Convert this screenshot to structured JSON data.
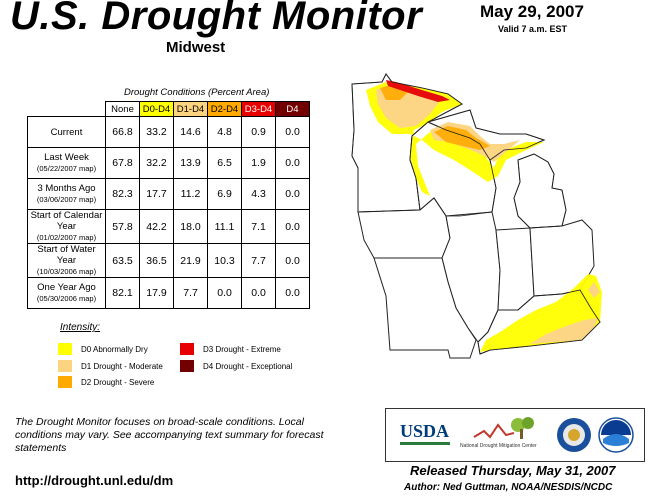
{
  "title": "U.S. Drought Monitor",
  "region": "Midwest",
  "date": "May 29, 2007",
  "valid": "Valid 7 a.m. EST",
  "table": {
    "caption": "Drought Conditions (Percent Area)",
    "headers": [
      "None",
      "D0-D4",
      "D1-D4",
      "D2-D4",
      "D3-D4",
      "D4"
    ],
    "rows": [
      {
        "label": "Current",
        "sub": "",
        "values": [
          "66.8",
          "33.2",
          "14.6",
          "4.8",
          "0.9",
          "0.0"
        ]
      },
      {
        "label": "Last Week",
        "sub": "(05/22/2007 map)",
        "values": [
          "67.8",
          "32.2",
          "13.9",
          "6.5",
          "1.9",
          "0.0"
        ]
      },
      {
        "label": "3 Months Ago",
        "sub": "(03/06/2007 map)",
        "values": [
          "82.3",
          "17.7",
          "11.2",
          "6.9",
          "4.3",
          "0.0"
        ]
      },
      {
        "label": "Start of Calendar Year",
        "sub": "(01/02/2007 map)",
        "values": [
          "57.8",
          "42.2",
          "18.0",
          "11.1",
          "7.1",
          "0.0"
        ]
      },
      {
        "label": "Start of Water Year",
        "sub": "(10/03/2006 map)",
        "values": [
          "63.5",
          "36.5",
          "21.9",
          "10.3",
          "7.7",
          "0.0"
        ]
      },
      {
        "label": "One Year Ago",
        "sub": "(05/30/2006 map)",
        "values": [
          "82.1",
          "17.9",
          "7.7",
          "0.0",
          "0.0",
          "0.0"
        ]
      }
    ]
  },
  "intensity": {
    "title": "Intensity:",
    "items": [
      {
        "label": "D0 Abnormally Dry",
        "color": "#ffff00"
      },
      {
        "label": "D1 Drought - Moderate",
        "color": "#fcd37f"
      },
      {
        "label": "D2 Drought - Severe",
        "color": "#ffaa00"
      },
      {
        "label": "D3 Drought - Extreme",
        "color": "#e60000"
      },
      {
        "label": "D4 Drought - Exceptional",
        "color": "#730000"
      }
    ]
  },
  "note": "The Drought Monitor focuses on broad-scale conditions. Local conditions may vary. See accompanying text summary for forecast statements",
  "url": "http://drought.unl.edu/dm",
  "released": "Released Thursday, May 31, 2007",
  "author": "Author: Ned Guttman, NOAA/NESDIS/NCDC",
  "logos": {
    "usda": "USDA",
    "ndmc": "National Drought Mitigation Center",
    "doc": "DOC",
    "noaa": "NOAA"
  }
}
